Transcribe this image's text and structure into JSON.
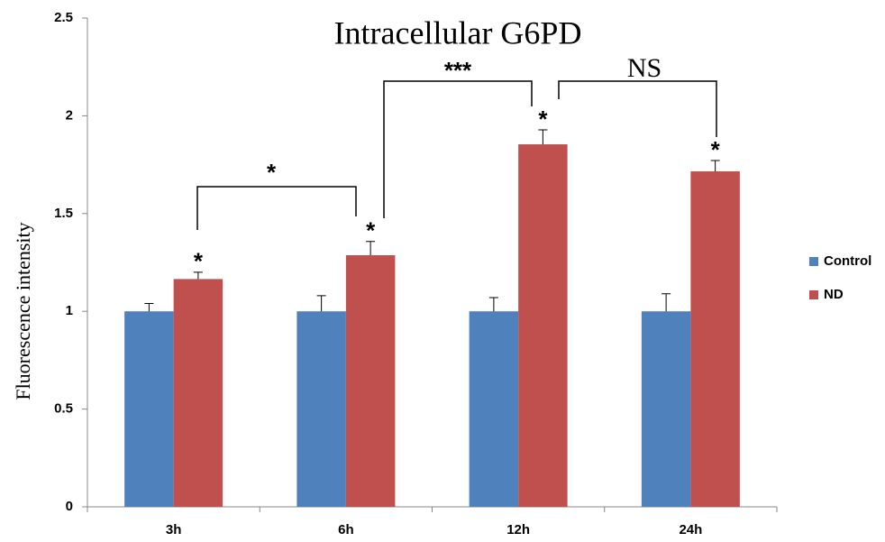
{
  "chart_data": {
    "type": "bar",
    "title": "Intracellular G6PD",
    "y_label": "Fluorescence intensity",
    "categories": [
      "3h",
      "6h",
      "12h",
      "24h"
    ],
    "series": [
      {
        "name": "Control",
        "color": "#4f81bd",
        "values": [
          1,
          1,
          1,
          1
        ],
        "errors": [
          0.04,
          0.08,
          0.07,
          0.09
        ]
      },
      {
        "name": "ND",
        "color": "#c0504d",
        "values": [
          1.165,
          1.287,
          1.854,
          1.716
        ],
        "errors": [
          0.035,
          0.07,
          0.074,
          0.055
        ],
        "bar_annotations": [
          "*",
          "*",
          "*",
          "*"
        ]
      }
    ],
    "comparisons": [
      "*",
      "***",
      "NS"
    ],
    "ylim": [
      0,
      2.5
    ],
    "yticks": [
      0,
      0.5,
      1,
      1.5,
      2,
      2.5
    ],
    "grid": false,
    "legend": "right"
  }
}
